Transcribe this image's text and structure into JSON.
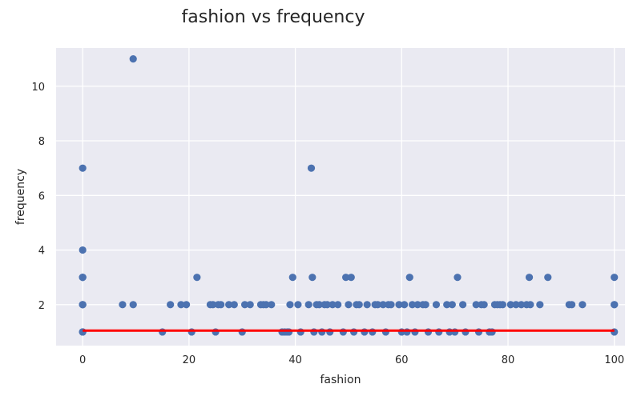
{
  "chart_data": {
    "type": "scatter",
    "title": "fashion vs frequency",
    "xlabel": "fashion",
    "ylabel": "frequency",
    "xlim": [
      -5,
      102
    ],
    "ylim": [
      0.5,
      11.4
    ],
    "xticks": [
      0,
      20,
      40,
      60,
      80,
      100
    ],
    "yticks": [
      2,
      4,
      6,
      8,
      10
    ],
    "grid": true,
    "colors": {
      "background": "#eaeaf2",
      "points": "#4c72b0",
      "fit_line": "#ff0000"
    },
    "series": [
      {
        "x": [
          0,
          0,
          0,
          0,
          0,
          0,
          0,
          0,
          0,
          0,
          0,
          7.5,
          9.5,
          9.5,
          15,
          16.5,
          18.5,
          19.5,
          20.5,
          21.5,
          24,
          24.5,
          25,
          25.5,
          26,
          27.5,
          28.5,
          30,
          30.5,
          31.5,
          33.5,
          34,
          34.5,
          35.5,
          37.5,
          38,
          38.5,
          38.8,
          39,
          39.5,
          40.5,
          41,
          42.5,
          43,
          43.2,
          43.5,
          44,
          44.5,
          45,
          45.5,
          46,
          46.5,
          47,
          48,
          49,
          49.5,
          50,
          50.5,
          51,
          51.5,
          52,
          53,
          53.5,
          54.5,
          55,
          55.5,
          56.5,
          57,
          57.5,
          58,
          59.5,
          60,
          60.5,
          61,
          61.5,
          62,
          62.5,
          63,
          64,
          64.5,
          65,
          66.5,
          67,
          68.5,
          69,
          69.5,
          70,
          70.5,
          71.5,
          72,
          74,
          74.5,
          75,
          75.5,
          76.5,
          77,
          77.5,
          78,
          78.5,
          79,
          80.5,
          81.5,
          82.5,
          83.5,
          84,
          84.2,
          86,
          87.5,
          91.5,
          92,
          94,
          100,
          100,
          100,
          100
        ],
        "y": [
          1,
          2,
          3,
          4,
          7,
          1,
          2,
          2,
          3,
          3,
          1,
          2,
          11,
          2,
          1,
          2,
          2,
          2,
          1,
          3,
          2,
          2,
          1,
          2,
          2,
          2,
          2,
          1,
          2,
          2,
          2,
          2,
          2,
          2,
          1,
          1,
          1,
          1,
          2,
          3,
          2,
          1,
          2,
          7,
          3,
          1,
          2,
          2,
          1,
          2,
          2,
          1,
          2,
          2,
          1,
          3,
          2,
          3,
          1,
          2,
          2,
          1,
          2,
          1,
          2,
          2,
          2,
          1,
          2,
          2,
          2,
          1,
          2,
          1,
          3,
          2,
          1,
          2,
          2,
          2,
          1,
          2,
          1,
          2,
          1,
          2,
          1,
          3,
          2,
          1,
          2,
          1,
          2,
          2,
          1,
          1,
          2,
          2,
          2,
          2,
          2,
          2,
          2,
          2,
          3,
          2,
          2,
          3,
          2,
          2,
          2,
          1,
          2,
          2,
          3
        ],
        "fit_line": {
          "x": [
            0,
            100
          ],
          "y": [
            1.05,
            1.05
          ]
        }
      }
    ]
  }
}
